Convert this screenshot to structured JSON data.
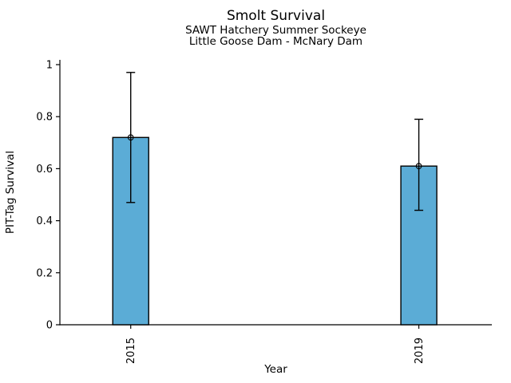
{
  "header": {
    "title": "Smolt Survival",
    "subtitle1": "SAWT Hatchery Summer Sockeye",
    "subtitle2": "Little Goose Dam - McNary Dam"
  },
  "axes": {
    "xlabel": "Year",
    "ylabel": "PIT-Tag Survival"
  },
  "colors": {
    "bar_fill": "#5BACD6",
    "bar_edge": "#000000",
    "axis": "#000000",
    "marker_edge": "#000000",
    "background": "#FFFFFF"
  },
  "chart_data": {
    "type": "bar",
    "title": "Smolt Survival",
    "subtitle": [
      "SAWT Hatchery Summer Sockeye",
      "Little Goose Dam - McNary Dam"
    ],
    "xlabel": "Year",
    "ylabel": "PIT-Tag Survival",
    "categories": [
      "2015",
      "2019"
    ],
    "series": [
      {
        "name": "PIT-Tag Survival",
        "values": [
          0.72,
          0.61
        ],
        "error_low": [
          0.47,
          0.44
        ],
        "error_high": [
          0.97,
          0.79
        ]
      }
    ],
    "ylim": [
      0,
      1
    ],
    "yticks": [
      0,
      0.2,
      0.4,
      0.6,
      0.8,
      1
    ],
    "ytick_labels": [
      "0",
      "0.2",
      "0.4",
      "0.6",
      "0.8",
      "1"
    ],
    "grid": false,
    "legend_position": "none",
    "marker": "open-circle",
    "bar_color": "#5BACD6"
  }
}
